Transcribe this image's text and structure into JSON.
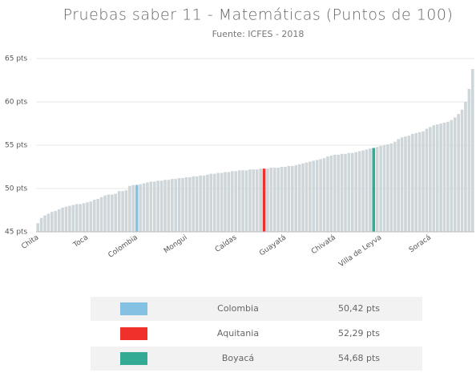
{
  "chart_data": {
    "type": "bar",
    "title": "Pruebas saber 11 - Matemáticas (Puntos de 100)",
    "subtitle": "Fuente: ICFES - 2018",
    "color": "#cfd6d9",
    "grid": true,
    "ylim": [
      45,
      65
    ],
    "yticks": [
      {
        "value": 45,
        "label": "45 pts"
      },
      {
        "value": 50,
        "label": "50 pts"
      },
      {
        "value": 55,
        "label": "55 pts"
      },
      {
        "value": 60,
        "label": "60 pts"
      },
      {
        "value": 65,
        "label": "65 pts"
      }
    ],
    "categories": [
      "Chita",
      null,
      null,
      null,
      null,
      null,
      null,
      null,
      null,
      null,
      null,
      null,
      null,
      null,
      "Toca",
      null,
      null,
      null,
      null,
      null,
      null,
      null,
      null,
      null,
      null,
      null,
      null,
      null,
      "Colombia",
      null,
      null,
      null,
      null,
      null,
      null,
      null,
      null,
      null,
      null,
      null,
      null,
      null,
      "Mongui",
      null,
      null,
      null,
      null,
      null,
      null,
      null,
      null,
      null,
      null,
      null,
      null,
      null,
      "Caldas",
      null,
      null,
      null,
      null,
      null,
      null,
      null,
      null,
      null,
      null,
      null,
      null,
      null,
      "Guayatá",
      null,
      null,
      null,
      null,
      null,
      null,
      null,
      null,
      null,
      null,
      null,
      null,
      null,
      "Chivatá",
      null,
      null,
      null,
      null,
      null,
      null,
      null,
      null,
      null,
      null,
      null,
      null,
      "Villa de Leyva",
      null,
      null,
      null,
      null,
      null,
      null,
      null,
      null,
      null,
      null,
      null,
      null,
      null,
      "Soracá",
      null,
      null,
      null,
      null,
      null,
      null,
      null,
      null,
      null,
      null,
      null,
      null
    ],
    "values": [
      46.0,
      46.6,
      46.9,
      47.1,
      47.3,
      47.4,
      47.6,
      47.8,
      47.9,
      48.0,
      48.1,
      48.2,
      48.2,
      48.3,
      48.4,
      48.5,
      48.7,
      48.8,
      49.0,
      49.2,
      49.3,
      49.3,
      49.4,
      49.7,
      49.7,
      49.8,
      50.3,
      50.4,
      50.42,
      50.5,
      50.6,
      50.7,
      50.8,
      50.8,
      50.9,
      50.9,
      51.0,
      51.0,
      51.1,
      51.1,
      51.2,
      51.2,
      51.3,
      51.3,
      51.4,
      51.4,
      51.5,
      51.5,
      51.6,
      51.7,
      51.7,
      51.8,
      51.8,
      51.9,
      51.9,
      52.0,
      52.0,
      52.1,
      52.1,
      52.1,
      52.2,
      52.2,
      52.2,
      52.3,
      52.29,
      52.3,
      52.4,
      52.4,
      52.4,
      52.5,
      52.5,
      52.6,
      52.6,
      52.7,
      52.8,
      52.9,
      53.0,
      53.1,
      53.2,
      53.3,
      53.4,
      53.5,
      53.7,
      53.8,
      53.9,
      53.9,
      54.0,
      54.0,
      54.1,
      54.1,
      54.2,
      54.3,
      54.4,
      54.5,
      54.6,
      54.68,
      54.8,
      54.9,
      55.0,
      55.1,
      55.2,
      55.4,
      55.7,
      55.9,
      56.0,
      56.1,
      56.3,
      56.4,
      56.5,
      56.6,
      56.9,
      57.1,
      57.3,
      57.4,
      57.5,
      57.6,
      57.7,
      57.9,
      58.2,
      58.6,
      59.1,
      60.0,
      61.5,
      63.8
    ]
  },
  "table": {
    "rows": [
      {
        "name": "Colombia",
        "value": "50,42 pts",
        "color": "#85c1e3",
        "bar": 28
      },
      {
        "name": "Aquitania",
        "value": "52,29 pts",
        "color": "#f0302a",
        "bar": 64
      },
      {
        "name": "Boyacá",
        "value": "54,68 pts",
        "color": "#33aa94",
        "bar": 95
      }
    ]
  }
}
